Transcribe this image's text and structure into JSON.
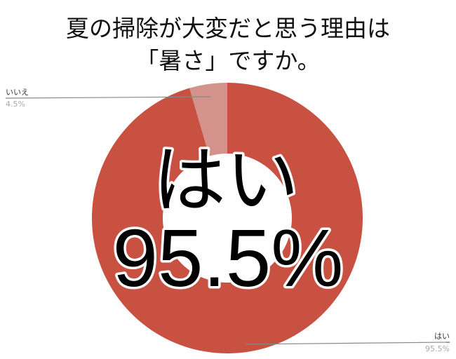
{
  "title_lines": [
    "夏の掃除が大変だと思う理由は",
    "「暑さ」ですか。"
  ],
  "chart_data": {
    "type": "pie",
    "style": "donut",
    "title": "夏の掃除が大変だと思う理由は「暑さ」ですか。",
    "categories": [
      "はい",
      "いいえ"
    ],
    "values": [
      95.5,
      4.5
    ],
    "value_labels": [
      "95.5%",
      "4.5%"
    ],
    "colors": [
      "#c85142",
      "#d4928c"
    ],
    "legend": "callout-labels",
    "annotation": {
      "label": "はい",
      "value": "95.5%"
    }
  }
}
